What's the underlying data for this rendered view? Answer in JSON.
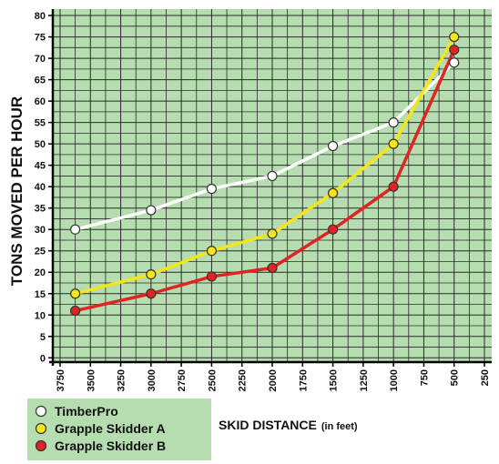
{
  "chart_data": {
    "type": "line",
    "y_label": "TONS MOVED PER HOUR",
    "x_label": "SKID DISTANCE",
    "x_label_note": "(in feet)",
    "x": [
      3625,
      3000,
      2500,
      2000,
      1500,
      1000,
      500
    ],
    "series": [
      {
        "name": "TimberPro",
        "color": "#ffffff",
        "values": [
          30,
          34.5,
          39.5,
          42.5,
          49.5,
          55,
          69
        ]
      },
      {
        "name": "Grapple Skidder A",
        "color": "#f5e61a",
        "values": [
          15,
          19.5,
          25,
          29,
          38.5,
          50,
          75
        ]
      },
      {
        "name": "Grapple Skidder B",
        "color": "#e02424",
        "values": [
          11,
          15,
          19,
          21,
          30,
          40,
          72
        ]
      }
    ],
    "xlim": [
      3810,
      190
    ],
    "ylim": [
      -1,
      81.5
    ],
    "xticks": [
      3750,
      3500,
      3250,
      3000,
      2750,
      2500,
      2250,
      2000,
      1750,
      1500,
      1250,
      1000,
      750,
      500,
      250
    ],
    "yticks": [
      0,
      5,
      10,
      15,
      20,
      25,
      30,
      35,
      40,
      45,
      50,
      55,
      60,
      65,
      70,
      75,
      80
    ],
    "grid": true,
    "minor_grid": true,
    "legend": "bottom-left"
  }
}
